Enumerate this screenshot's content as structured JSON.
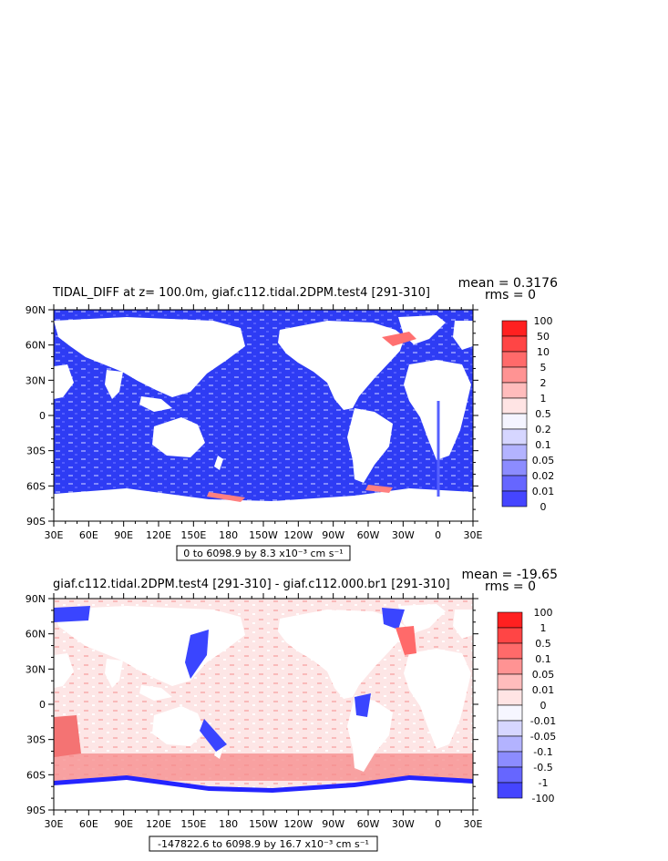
{
  "chart_data": [
    {
      "type": "heatmap",
      "title": "TIDAL_DIFF at z= 100.0m, giaf.c112.tidal.2DPM.test4 [291-310]",
      "stats": {
        "mean": "mean = 0.3176",
        "rms": "rms = 0"
      },
      "y_ticks": [
        "90N",
        "60N",
        "30N",
        "0",
        "30S",
        "60S",
        "90S"
      ],
      "x_ticks": [
        "30E",
        "60E",
        "90E",
        "120E",
        "150E",
        "180",
        "150W",
        "120W",
        "90W",
        "60W",
        "30W",
        "0",
        "30E"
      ],
      "range_text": "0 to 6098.9 by 8.3 x10⁻³ cm s⁻¹",
      "colorbar": {
        "labels": [
          "100",
          "50",
          "10",
          "5",
          "2",
          "1",
          "0.5",
          "0.2",
          "0.1",
          "0.05",
          "0.02",
          "0.01",
          "0"
        ],
        "colors": [
          "#ff2020",
          "#ff4545",
          "#ff6a6a",
          "#ff9393",
          "#ffbcbc",
          "#ffe4e4",
          "#f4f4ff",
          "#d6d6ff",
          "#b3b3ff",
          "#8c8cff",
          "#6666ff",
          "#4545ff",
          "#2424ff"
        ]
      },
      "ocean_color": "#2e3cf4"
    },
    {
      "type": "heatmap",
      "title": "giaf.c112.tidal.2DPM.test4 [291-310] - giaf.c112.000.br1 [291-310]",
      "stats": {
        "mean": "mean = -19.65",
        "rms": "rms = 0"
      },
      "y_ticks": [
        "90N",
        "60N",
        "30N",
        "0",
        "30S",
        "60S",
        "90S"
      ],
      "x_ticks": [
        "30E",
        "60E",
        "90E",
        "120E",
        "150E",
        "180",
        "150W",
        "120W",
        "90W",
        "60W",
        "30W",
        "0",
        "30E"
      ],
      "range_text": "-147822.6 to 6098.9 by 16.7 x10⁻³ cm s⁻¹",
      "colorbar": {
        "labels": [
          "100",
          "1",
          "0.5",
          "0.1",
          "0.05",
          "0.01",
          "0",
          "-0.01",
          "-0.05",
          "-0.1",
          "-0.5",
          "-1",
          "-100"
        ],
        "colors": [
          "#ff2020",
          "#ff4545",
          "#ff6a6a",
          "#ff9393",
          "#ffbcbc",
          "#ffe4e4",
          "#f6f6ff",
          "#d6d6ff",
          "#b3b3ff",
          "#8c8cff",
          "#6666ff",
          "#4545ff",
          "#2424ff"
        ]
      },
      "ocean_color": "#fde6e6"
    }
  ]
}
